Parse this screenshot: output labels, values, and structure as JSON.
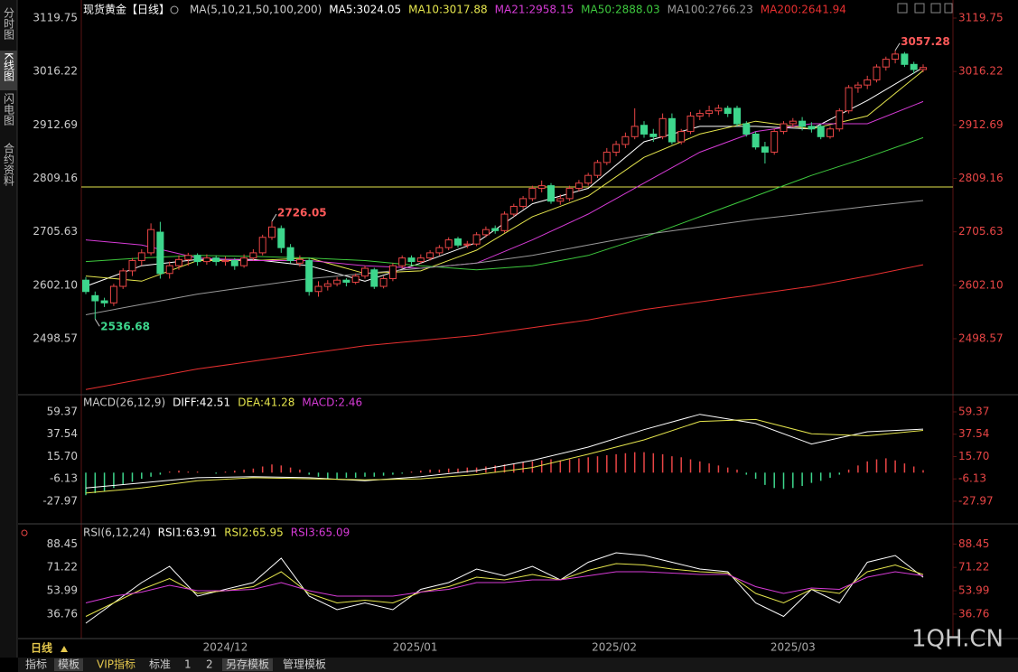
{
  "sidebar": [
    "分时图",
    "K线图",
    "闪电图",
    "合约资料"
  ],
  "period": "日线",
  "toolbar": [
    "指标",
    "模板",
    "VIP指标",
    "标准",
    "1",
    "2",
    "另存模板",
    "管理模板"
  ],
  "watermark": "1QH.CN",
  "chart_data": [
    {
      "type": "candlestick",
      "title": "现货黄金【日线】",
      "indicator": "MA(5,10,21,50,100,200)",
      "ylim": [
        2393.6,
        3140.75
      ],
      "yticks": [
        3119.75,
        3016.22,
        2912.69,
        2809.16,
        2705.63,
        {
          "value": 2602.1,
          "label": "2602.10"
        },
        2498.57
      ],
      "xticks": [
        {
          "value": 15,
          "label": "2024/12"
        },
        {
          "value": 35.4,
          "label": "2025/01"
        },
        {
          "value": 56.8,
          "label": "2025/02"
        },
        {
          "value": 76,
          "label": "2025/03"
        }
      ],
      "hline": 2792.5,
      "annotations": [
        "3057.28",
        "2726.05",
        "2536.68"
      ],
      "candles": [
        [
          2612,
          2618,
          2585,
          2590
        ],
        [
          2582,
          2590,
          2536.68,
          2572
        ],
        [
          2572,
          2578,
          2560,
          2568
        ],
        [
          2568,
          2605,
          2562,
          2600
        ],
        [
          2600,
          2635,
          2595,
          2630
        ],
        [
          2630,
          2655,
          2620,
          2650
        ],
        [
          2650,
          2672,
          2640,
          2665
        ],
        [
          2665,
          2722,
          2660,
          2710
        ],
        [
          2705,
          2725,
          2615,
          2625
        ],
        [
          2625,
          2648,
          2615,
          2640
        ],
        [
          2640,
          2660,
          2632,
          2652
        ],
        [
          2652,
          2665,
          2640,
          2660
        ],
        [
          2660,
          2664,
          2640,
          2648
        ],
        [
          2648,
          2662,
          2642,
          2655
        ],
        [
          2655,
          2660,
          2640,
          2648
        ],
        [
          2648,
          2658,
          2640,
          2650
        ],
        [
          2650,
          2655,
          2632,
          2640
        ],
        [
          2640,
          2662,
          2636,
          2655
        ],
        [
          2655,
          2672,
          2650,
          2665
        ],
        [
          2665,
          2700,
          2660,
          2695
        ],
        [
          2695,
          2726.05,
          2690,
          2715
        ],
        [
          2712,
          2718,
          2665,
          2675
        ],
        [
          2675,
          2682,
          2645,
          2650
        ],
        [
          2645,
          2660,
          2638,
          2652
        ],
        [
          2650,
          2655,
          2582,
          2590
        ],
        [
          2590,
          2610,
          2580,
          2600
        ],
        [
          2600,
          2612,
          2592,
          2605
        ],
        [
          2605,
          2618,
          2600,
          2612
        ],
        [
          2612,
          2616,
          2600,
          2608
        ],
        [
          2608,
          2625,
          2604,
          2620
        ],
        [
          2620,
          2640,
          2615,
          2635
        ],
        [
          2632,
          2636,
          2595,
          2600
        ],
        [
          2600,
          2620,
          2596,
          2615
        ],
        [
          2615,
          2645,
          2610,
          2640
        ],
        [
          2640,
          2660,
          2635,
          2655
        ],
        [
          2655,
          2660,
          2640,
          2648
        ],
        [
          2648,
          2662,
          2644,
          2655
        ],
        [
          2655,
          2670,
          2650,
          2665
        ],
        [
          2665,
          2680,
          2660,
          2675
        ],
        [
          2675,
          2695,
          2670,
          2690
        ],
        [
          2692,
          2696,
          2675,
          2680
        ],
        [
          2680,
          2688,
          2674,
          2682
        ],
        [
          2682,
          2705,
          2678,
          2700
        ],
        [
          2700,
          2716,
          2695,
          2710
        ],
        [
          2712,
          2718,
          2702,
          2708
        ],
        [
          2708,
          2745,
          2704,
          2740
        ],
        [
          2740,
          2760,
          2735,
          2755
        ],
        [
          2755,
          2775,
          2750,
          2770
        ],
        [
          2770,
          2795,
          2765,
          2790
        ],
        [
          2790,
          2805,
          2782,
          2795
        ],
        [
          2795,
          2800,
          2760,
          2765
        ],
        [
          2765,
          2778,
          2758,
          2770
        ],
        [
          2770,
          2795,
          2765,
          2790
        ],
        [
          2790,
          2806,
          2784,
          2800
        ],
        [
          2800,
          2820,
          2795,
          2815
        ],
        [
          2815,
          2845,
          2810,
          2840
        ],
        [
          2840,
          2868,
          2835,
          2860
        ],
        [
          2860,
          2882,
          2852,
          2875
        ],
        [
          2875,
          2898,
          2868,
          2890
        ],
        [
          2890,
          2945,
          2885,
          2910
        ],
        [
          2912,
          2920,
          2888,
          2895
        ],
        [
          2895,
          2905,
          2880,
          2890
        ],
        [
          2890,
          2935,
          2885,
          2925
        ],
        [
          2925,
          2935,
          2875,
          2880
        ],
        [
          2880,
          2905,
          2875,
          2900
        ],
        [
          2900,
          2938,
          2895,
          2930
        ],
        [
          2930,
          2942,
          2922,
          2935
        ],
        [
          2935,
          2950,
          2928,
          2940
        ],
        [
          2940,
          2952,
          2932,
          2945
        ],
        [
          2945,
          2950,
          2928,
          2935
        ],
        [
          2945,
          2950,
          2910,
          2915
        ],
        [
          2915,
          2920,
          2890,
          2895
        ],
        [
          2895,
          2900,
          2865,
          2870
        ],
        [
          2870,
          2880,
          2838,
          2860
        ],
        [
          2860,
          2905,
          2855,
          2900
        ],
        [
          2900,
          2920,
          2895,
          2915
        ],
        [
          2915,
          2926,
          2908,
          2920
        ],
        [
          2920,
          2928,
          2902,
          2910
        ],
        [
          2910,
          2918,
          2898,
          2905
        ],
        [
          2910,
          2914,
          2885,
          2890
        ],
        [
          2890,
          2910,
          2886,
          2905
        ],
        [
          2905,
          2945,
          2900,
          2940
        ],
        [
          2940,
          2990,
          2935,
          2985
        ],
        [
          2985,
          2996,
          2975,
          2990
        ],
        [
          2990,
          3008,
          2982,
          3000
        ],
        [
          3000,
          3030,
          2995,
          3025
        ],
        [
          3025,
          3045,
          3018,
          3040
        ],
        [
          3040,
          3057.28,
          3032,
          3050
        ],
        [
          3050,
          3054,
          3025,
          3030
        ],
        [
          3030,
          3035,
          3012,
          3020
        ],
        [
          3020,
          3030,
          3015,
          3024
        ]
      ],
      "up_color": "#e84545",
      "down_color": "#3dd68c",
      "series": [
        {
          "label": "MA5:3024.05",
          "color": "#ffffff",
          "x": [
            0,
            6,
            12,
            18,
            24,
            30,
            36,
            42,
            48,
            54,
            60,
            66,
            72,
            78,
            84,
            90
          ],
          "values": [
            2600,
            2640,
            2652,
            2652,
            2640,
            2610,
            2645,
            2685,
            2760,
            2790,
            2880,
            2910,
            2910,
            2905,
            2960,
            3024.05
          ]
        },
        {
          "label": "MA10:3017.88",
          "color": "#e5e54d",
          "x": [
            0,
            6,
            12,
            18,
            24,
            30,
            36,
            42,
            48,
            54,
            60,
            66,
            72,
            78,
            84,
            90
          ],
          "values": [
            2620,
            2610,
            2650,
            2650,
            2655,
            2625,
            2630,
            2670,
            2735,
            2775,
            2850,
            2895,
            2920,
            2905,
            2930,
            3017.88
          ]
        },
        {
          "label": "MA21:2958.15",
          "color": "#d63bd6",
          "x": [
            0,
            6,
            12,
            18,
            24,
            30,
            36,
            42,
            48,
            54,
            60,
            66,
            72,
            78,
            84,
            90
          ],
          "values": [
            2690,
            2680,
            2655,
            2650,
            2650,
            2640,
            2635,
            2645,
            2690,
            2740,
            2800,
            2860,
            2900,
            2915,
            2915,
            2958.15
          ]
        },
        {
          "label": "MA50:2888.03",
          "color": "#3ec93e",
          "x": [
            0,
            6,
            12,
            18,
            24,
            30,
            36,
            42,
            48,
            54,
            60,
            66,
            72,
            78,
            84,
            90
          ],
          "values": [
            2648,
            2655,
            2660,
            2658,
            2655,
            2650,
            2640,
            2632,
            2640,
            2660,
            2695,
            2735,
            2775,
            2815,
            2850,
            2888.03
          ]
        },
        {
          "label": "MA100:2766.23",
          "color": "#999999",
          "x": [
            0,
            6,
            12,
            18,
            24,
            30,
            36,
            42,
            48,
            54,
            60,
            66,
            72,
            78,
            84,
            90
          ],
          "values": [
            2545,
            2565,
            2585,
            2600,
            2615,
            2625,
            2635,
            2645,
            2660,
            2680,
            2700,
            2715,
            2730,
            2742,
            2755,
            2766.23
          ]
        },
        {
          "label": "MA200:2641.94",
          "color": "#e83030",
          "x": [
            0,
            6,
            12,
            18,
            24,
            30,
            36,
            42,
            48,
            54,
            60,
            66,
            72,
            78,
            84,
            90
          ],
          "values": [
            2400,
            2420,
            2440,
            2455,
            2470,
            2485,
            2495,
            2505,
            2520,
            2535,
            2555,
            2570,
            2585,
            2600,
            2620,
            2641.94
          ]
        }
      ]
    },
    {
      "type": "macd",
      "title": "MACD(26,12,9)",
      "ylim": [
        -48.3,
        73.5
      ],
      "yticks": [
        59.37,
        37.54,
        {
          "value": 15.7,
          "label": "15.70"
        },
        -6.13,
        -27.97
      ],
      "histogram": {
        "label": "MACD:2.46",
        "color": "#d63bd6",
        "up_color": "#e84545",
        "down_color": "#3dd68c",
        "values": [
          -22,
          -20,
          -18,
          -15,
          -12,
          -9,
          -6,
          -4,
          -2,
          1,
          2,
          1,
          1,
          0,
          -1,
          1,
          2,
          3,
          4,
          6,
          8,
          7,
          5,
          3,
          -2,
          -4,
          -6,
          -6,
          -5,
          -5,
          -4,
          -4,
          -3,
          -2,
          -1,
          1,
          2,
          3,
          3,
          4,
          4,
          5,
          5,
          6,
          7,
          8,
          9,
          10,
          11,
          12,
          13,
          12,
          13,
          14,
          15,
          16,
          17,
          18,
          19,
          20,
          20,
          19,
          18,
          16,
          15,
          13,
          11,
          9,
          7,
          5,
          3,
          -2,
          -6,
          -12,
          -15,
          -16,
          -15,
          -13,
          -10,
          -8,
          -5,
          -2,
          3,
          7,
          11,
          13,
          14,
          12,
          9,
          6,
          2.46
        ]
      },
      "series": [
        {
          "label": "DIFF:42.51",
          "color": "#ffffff",
          "x": [
            0,
            6,
            12,
            18,
            24,
            30,
            36,
            42,
            48,
            54,
            60,
            66,
            72,
            78,
            84,
            90
          ],
          "values": [
            -15,
            -10,
            -5,
            -4,
            -5,
            -8,
            -4,
            2,
            12,
            25,
            42,
            57,
            48,
            28,
            40,
            42.51
          ]
        },
        {
          "label": "DEA:41.28",
          "color": "#e5e54d",
          "x": [
            0,
            6,
            12,
            18,
            24,
            30,
            36,
            42,
            48,
            54,
            60,
            66,
            72,
            78,
            84,
            90
          ],
          "values": [
            -20,
            -15,
            -8,
            -5,
            -6,
            -7,
            -6,
            -2,
            5,
            18,
            32,
            50,
            52,
            38,
            36,
            41.28
          ]
        }
      ]
    },
    {
      "type": "rsi",
      "title": "RSI(6,12,24)",
      "ylim": [
        20,
        100
      ],
      "yticks": [
        88.45,
        71.22,
        53.99,
        36.76
      ],
      "series": [
        {
          "label": "RSI1:63.91",
          "color": "#ffffff",
          "x": [
            0,
            3,
            6,
            9,
            12,
            15,
            18,
            21,
            24,
            27,
            30,
            33,
            36,
            39,
            42,
            45,
            48,
            51,
            54,
            57,
            60,
            63,
            66,
            69,
            72,
            75,
            78,
            81,
            84,
            87,
            90
          ],
          "values": [
            30,
            45,
            60,
            72,
            50,
            55,
            60,
            78,
            50,
            40,
            45,
            40,
            55,
            60,
            70,
            65,
            72,
            62,
            75,
            82,
            80,
            75,
            70,
            68,
            45,
            35,
            55,
            45,
            75,
            80,
            63.91
          ]
        },
        {
          "label": "RSI2:65.95",
          "color": "#e5e54d",
          "x": [
            0,
            3,
            6,
            9,
            12,
            15,
            18,
            21,
            24,
            27,
            30,
            33,
            36,
            39,
            42,
            45,
            48,
            51,
            54,
            57,
            60,
            63,
            66,
            69,
            72,
            75,
            78,
            81,
            84,
            87,
            90
          ],
          "values": [
            35,
            45,
            55,
            63,
            52,
            54,
            57,
            68,
            52,
            45,
            47,
            45,
            53,
            57,
            64,
            62,
            66,
            62,
            69,
            74,
            73,
            70,
            68,
            67,
            52,
            45,
            55,
            52,
            68,
            73,
            65.95
          ]
        },
        {
          "label": "RSI3:65.09",
          "color": "#d63bd6",
          "x": [
            0,
            3,
            6,
            9,
            12,
            15,
            18,
            21,
            24,
            27,
            30,
            33,
            36,
            39,
            42,
            45,
            48,
            51,
            54,
            57,
            60,
            63,
            66,
            69,
            72,
            75,
            78,
            81,
            84,
            87,
            90
          ],
          "values": [
            45,
            50,
            53,
            58,
            54,
            54,
            55,
            60,
            54,
            50,
            50,
            50,
            53,
            55,
            60,
            60,
            62,
            62,
            65,
            68,
            68,
            67,
            66,
            66,
            57,
            52,
            56,
            55,
            64,
            68,
            65.09
          ]
        }
      ]
    }
  ]
}
